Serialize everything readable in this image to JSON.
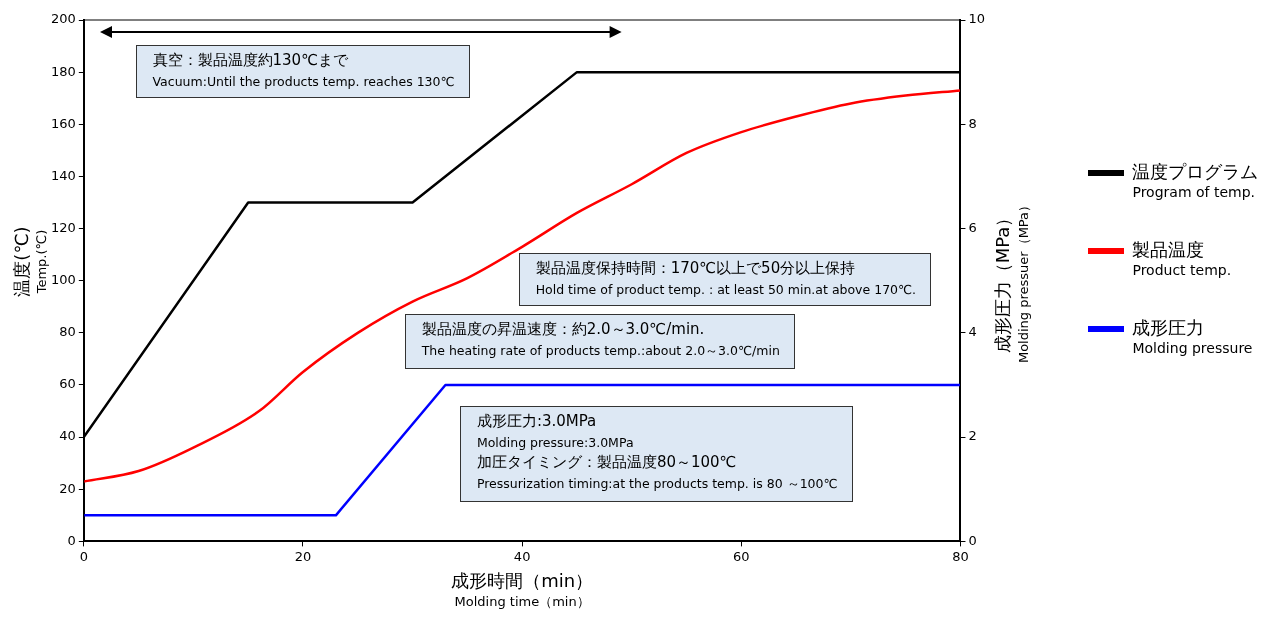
{
  "chart_data": {
    "type": "line",
    "xlabel": "成形時間（min）\nMolding time（min）",
    "ylabel": "温度(℃)\nTemp.(℃)",
    "y2label": "成形圧力（MPa）\nMolding pressuer（MPa）",
    "xlim": [
      0,
      80
    ],
    "xticks": [
      0,
      20,
      40,
      60,
      80
    ],
    "ylim": [
      0,
      200
    ],
    "yticks": [
      0,
      20,
      40,
      60,
      80,
      100,
      120,
      140,
      160,
      180,
      200
    ],
    "y2lim": [
      0,
      10
    ],
    "y2ticks": [
      0,
      2,
      4,
      6,
      8,
      10
    ],
    "grid": false,
    "legend": "right",
    "marker": "none",
    "line_style": "solid",
    "series": [
      {
        "name": "温度プログラム\nProgram of temp.",
        "color": "#000000",
        "x": [
          0,
          15,
          30,
          45,
          80
        ],
        "values": [
          40,
          130,
          130,
          180,
          180
        ]
      },
      {
        "name": "製品温度\nProduct temp.",
        "color": "#ff0000",
        "x": [
          0,
          5,
          10,
          16,
          20,
          25,
          30,
          35,
          40,
          45,
          50,
          55,
          60,
          65,
          70,
          75,
          80
        ],
        "values": [
          23,
          27,
          36,
          50,
          65,
          80,
          92,
          101,
          113,
          126,
          137,
          149,
          157,
          163,
          168,
          171,
          173
        ]
      },
      {
        "name": "成形圧力\nMolding pressure",
        "color": "#0000ff",
        "axis": "y2",
        "x": [
          0,
          23,
          33,
          80
        ],
        "values": [
          0.5,
          0.5,
          3,
          3
        ]
      }
    ],
    "annotations": [
      "真空：製品温度約130℃まで",
      "Vacuum:Until the products temp. reaches 130℃",
      "製品温度保持時間：170℃以上で50分以上保持",
      "Hold time of product temp. : at least 50 min.at above 170℃.",
      "製品温度の昇温速度：約2.0～3.0℃/min.",
      "The heating rate of products temp.:about 2.0～3.0℃/min",
      "成形圧力:3.0MPa",
      "Molding pressure:3.0MPa",
      "加圧タイミング：製品温度80～100℃",
      "Pressurization timing:at the products temp. is 80 ～100℃"
    ]
  }
}
